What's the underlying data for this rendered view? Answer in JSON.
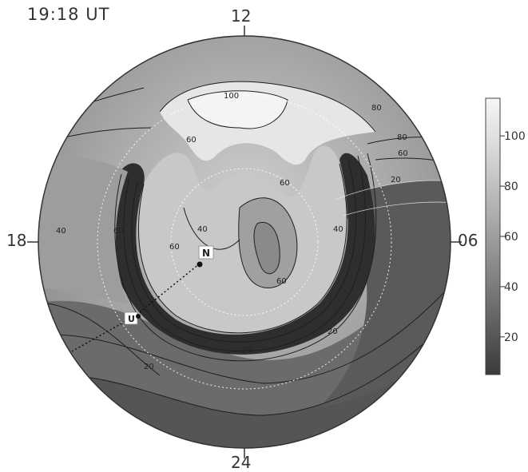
{
  "title": "19:18 UT",
  "local_time_labels": {
    "top": "12",
    "bottom": "24",
    "left": "18",
    "right": "06"
  },
  "markers": {
    "north_pole": "N",
    "station": "U"
  },
  "contour_labels": [
    "100",
    "80",
    "80",
    "60",
    "60",
    "60",
    "60",
    "60",
    "60",
    "40",
    "40",
    "40",
    "20",
    "20",
    "20",
    "20"
  ],
  "colorbar": {
    "ticks": [
      {
        "value": 100,
        "label": "100"
      },
      {
        "value": 80,
        "label": "80"
      },
      {
        "value": 60,
        "label": "60"
      },
      {
        "value": 40,
        "label": "40"
      },
      {
        "value": 20,
        "label": "20"
      }
    ],
    "min": 5,
    "max": 115
  },
  "colors": {
    "high": "#f4f4f4",
    "low": "#3a3a3a",
    "dark_band": "#2b2b2b",
    "frame": "#333333"
  }
}
